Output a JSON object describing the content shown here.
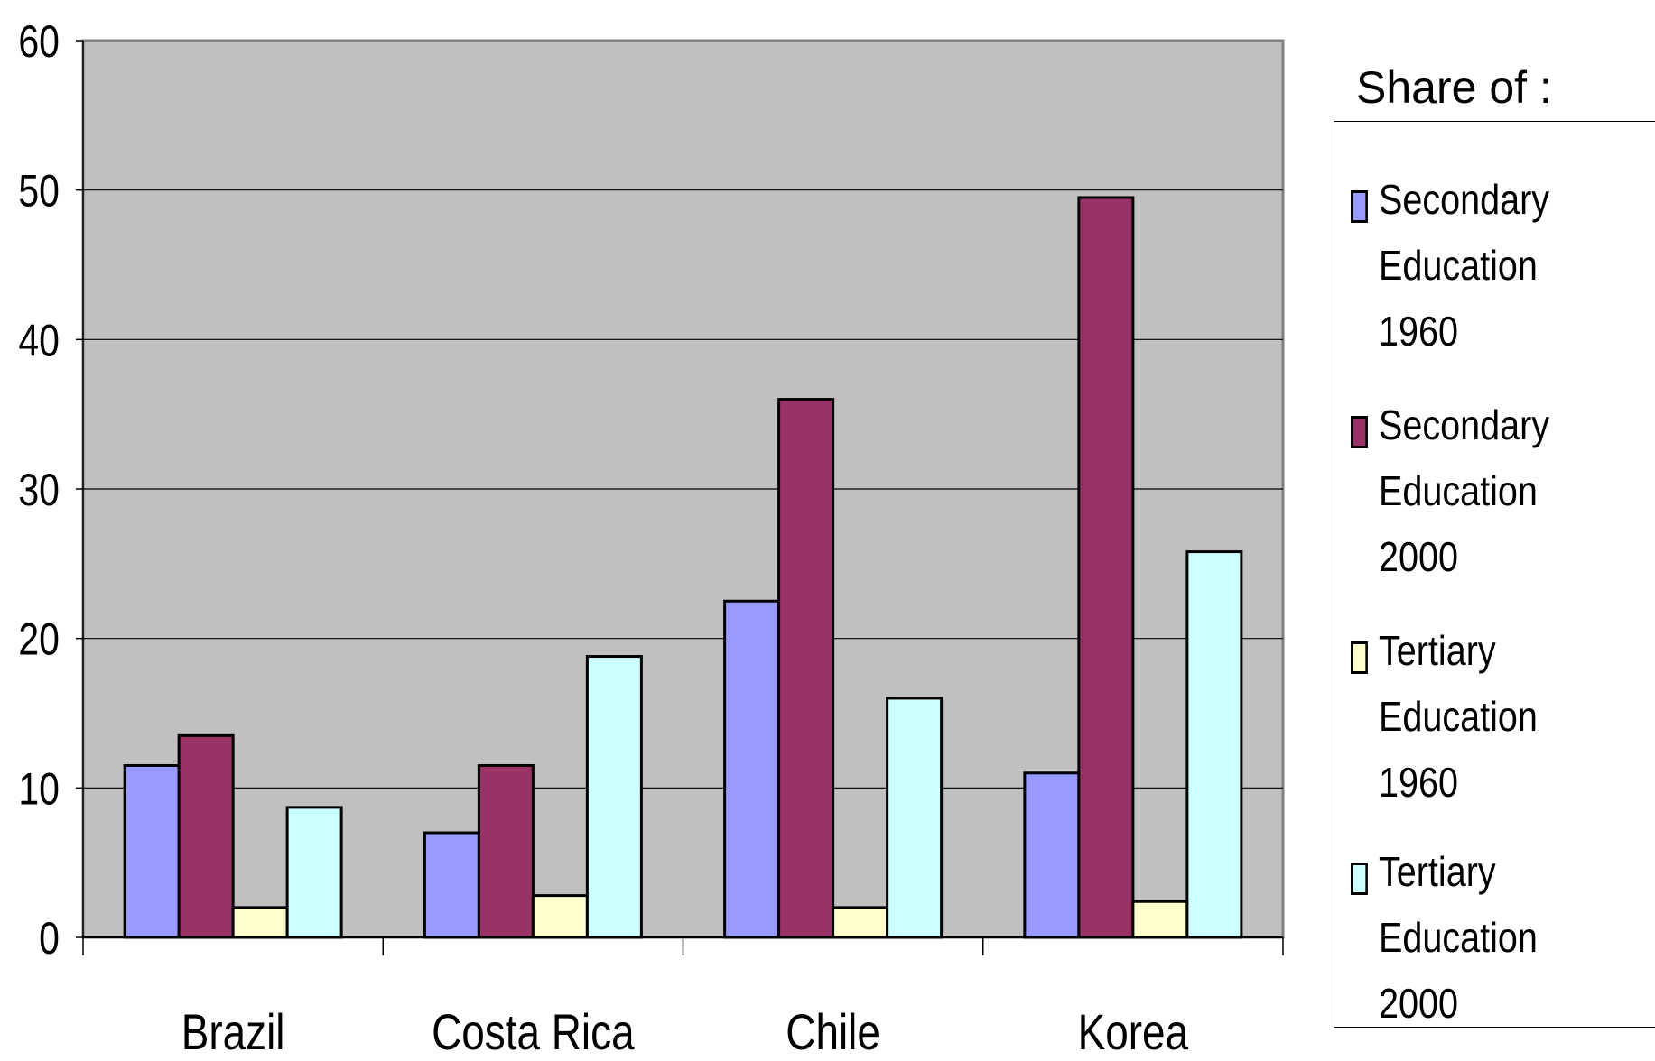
{
  "chart_data": {
    "type": "bar",
    "title": "",
    "xlabel": "",
    "ylabel": "",
    "ylim": [
      0,
      60
    ],
    "yticks": [
      0,
      10,
      20,
      30,
      40,
      50,
      60
    ],
    "grid": true,
    "legend_placement": "right",
    "legend_title": "Share of :",
    "categories": [
      "Brazil",
      "Costa Rica",
      "Chile",
      "Korea"
    ],
    "series": [
      {
        "name": "Secondary Education 1960",
        "color": "#9999FF",
        "values": [
          11.5,
          7,
          22.5,
          11
        ]
      },
      {
        "name": "Secondary Education 2000",
        "color": "#993366",
        "values": [
          13.5,
          11.5,
          36,
          49.5
        ]
      },
      {
        "name": "Tertiary Education 1960",
        "color": "#FFFFCC",
        "values": [
          2,
          2.8,
          2,
          2.4
        ]
      },
      {
        "name": "Tertiary Education 2000",
        "color": "#CCFFFF",
        "values": [
          8.7,
          18.8,
          16,
          25.8
        ]
      }
    ],
    "plot_background": "#C0C0C0"
  }
}
